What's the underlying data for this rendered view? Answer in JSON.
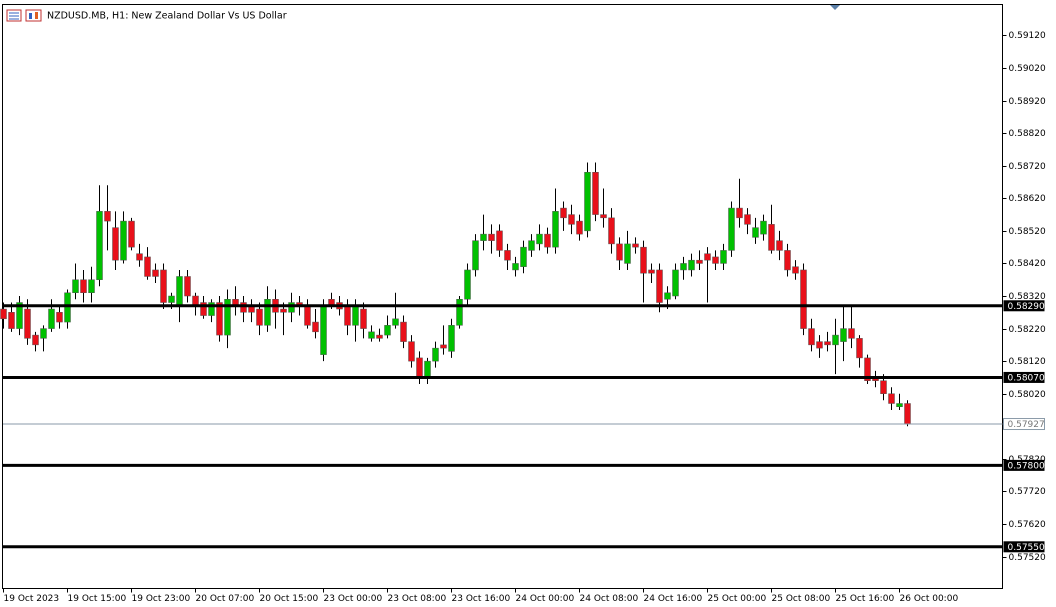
{
  "chart_data": {
    "type": "candlestick",
    "title": "NZDUSD.MB, H1:  New Zealand Dollar Vs US Dollar",
    "categories": [
      "19 Oct 2023",
      null,
      null,
      null,
      null,
      null,
      null,
      null,
      "19 Oct 15:00",
      null,
      null,
      null,
      null,
      null,
      null,
      null,
      "19 Oct 23:00",
      null,
      null,
      null,
      null,
      null,
      null,
      null,
      "20 Oct 07:00",
      null,
      null,
      null,
      null,
      null,
      null,
      null,
      "20 Oct 15:00",
      null,
      null,
      null,
      null,
      null,
      null,
      null,
      "23 Oct 00:00",
      null,
      null,
      null,
      null,
      null,
      null,
      null,
      "23 Oct 08:00",
      null,
      null,
      null,
      null,
      null,
      null,
      null,
      "23 Oct 16:00",
      null,
      null,
      null,
      null,
      null,
      null,
      null,
      "24 Oct 00:00",
      null,
      null,
      null,
      null,
      null,
      null,
      null,
      "24 Oct 08:00",
      null,
      null,
      null,
      null,
      null,
      null,
      null,
      "24 Oct 16:00",
      null,
      null,
      null,
      null,
      null,
      null,
      null,
      "25 Oct 00:00",
      null,
      null,
      null,
      null,
      null,
      null,
      null,
      "25 Oct 08:00",
      null,
      null,
      null,
      null,
      null,
      null,
      null,
      "25 Oct 16:00",
      null,
      null,
      null,
      null,
      null,
      null,
      null,
      "26 Oct 00:00",
      null
    ],
    "open": [
      0.5828,
      0.5827,
      0.5822,
      0.5828,
      0.582,
      0.5819,
      0.5822,
      0.5827,
      0.5824,
      0.5833,
      0.5837,
      0.5833,
      0.5837,
      0.5858,
      0.5853,
      0.5843,
      0.5855,
      0.5845,
      0.5844,
      0.584,
      0.584,
      0.583,
      0.5829,
      0.5838,
      0.5832,
      0.583,
      0.5826,
      0.583,
      0.582,
      0.5831,
      0.583,
      0.5829,
      0.5828,
      0.5823,
      0.5831,
      0.5828,
      0.5827,
      0.583,
      0.5829,
      0.5824,
      0.5814,
      0.5831,
      0.583,
      0.5829,
      0.5823,
      0.5828,
      0.5819,
      0.582,
      0.582,
      0.5823,
      0.5824,
      0.5818,
      0.5813,
      0.5807,
      0.5812,
      0.5817,
      0.5815,
      0.5823,
      0.5831,
      0.584,
      0.5849,
      0.5851,
      0.5852,
      0.5846,
      0.584,
      0.5841,
      0.5846,
      0.5848,
      0.5851,
      0.5847,
      0.5859,
      0.5857,
      0.5855,
      0.5852,
      0.587,
      0.5857,
      0.5856,
      0.5848,
      0.5842,
      0.5848,
      0.5847,
      0.584,
      0.584,
      0.5831,
      0.5832,
      0.584,
      0.584,
      0.5843,
      0.5845,
      0.5844,
      0.5842,
      0.5846,
      0.5859,
      0.5857,
      0.585,
      0.5851,
      0.5854,
      0.5849,
      0.5846,
      0.5841,
      0.584,
      0.5822,
      0.5818,
      0.5818,
      0.5817,
      0.5818,
      0.5822,
      0.5819,
      0.5813,
      0.5807,
      0.5806,
      0.5802,
      0.5798,
      0.5799
    ],
    "high": [
      0.583,
      0.583,
      0.5832,
      0.5831,
      0.5821,
      0.5823,
      0.5831,
      0.5829,
      0.5834,
      0.5842,
      0.584,
      0.5841,
      0.5866,
      0.5866,
      0.5858,
      0.5858,
      0.5856,
      0.5848,
      0.5847,
      0.5842,
      0.5842,
      0.5833,
      0.584,
      0.584,
      0.5833,
      0.5832,
      0.5831,
      0.5832,
      0.5834,
      0.5835,
      0.5832,
      0.5831,
      0.583,
      0.5835,
      0.5834,
      0.583,
      0.5833,
      0.5832,
      0.5831,
      0.5828,
      0.5831,
      0.5833,
      0.5832,
      0.5831,
      0.5831,
      0.583,
      0.5823,
      0.5822,
      0.5826,
      0.5833,
      0.5826,
      0.582,
      0.5815,
      0.5813,
      0.5818,
      0.5823,
      0.5825,
      0.5832,
      0.5842,
      0.5851,
      0.5857,
      0.5854,
      0.5854,
      0.5848,
      0.5844,
      0.5849,
      0.5851,
      0.5854,
      0.5853,
      0.5865,
      0.5861,
      0.586,
      0.5857,
      0.5873,
      0.5873,
      0.5865,
      0.5859,
      0.585,
      0.5852,
      0.585,
      0.5849,
      0.5842,
      0.5842,
      0.5835,
      0.5842,
      0.5844,
      0.5845,
      0.5846,
      0.5847,
      0.5846,
      0.5848,
      0.5861,
      0.5868,
      0.5859,
      0.5856,
      0.5857,
      0.586,
      0.5852,
      0.5848,
      0.5843,
      0.5842,
      0.5825,
      0.582,
      0.5821,
      0.5825,
      0.5829,
      0.5829,
      0.582,
      0.5814,
      0.5809,
      0.5808,
      0.5804,
      0.5802,
      0.58
    ],
    "low": [
      0.5822,
      0.5821,
      0.582,
      0.5817,
      0.5815,
      0.5815,
      0.5821,
      0.5822,
      0.5822,
      0.5831,
      0.583,
      0.583,
      0.5835,
      0.5846,
      0.584,
      0.5842,
      0.5846,
      0.5841,
      0.5837,
      0.5836,
      0.5828,
      0.5828,
      0.5824,
      0.583,
      0.5826,
      0.5825,
      0.5824,
      0.5818,
      0.5816,
      0.5826,
      0.5824,
      0.5824,
      0.582,
      0.5821,
      0.5822,
      0.582,
      0.5824,
      0.5826,
      0.5822,
      0.5819,
      0.5812,
      0.5828,
      0.5826,
      0.582,
      0.5818,
      0.5819,
      0.5818,
      0.5818,
      0.5819,
      0.5822,
      0.5816,
      0.581,
      0.5805,
      0.5805,
      0.581,
      0.5814,
      0.5813,
      0.5822,
      0.5829,
      0.5838,
      0.5846,
      0.5845,
      0.5844,
      0.584,
      0.5838,
      0.5839,
      0.5844,
      0.5846,
      0.5845,
      0.5845,
      0.5852,
      0.5851,
      0.5849,
      0.585,
      0.5855,
      0.5853,
      0.5845,
      0.584,
      0.584,
      0.5845,
      0.583,
      0.5836,
      0.5827,
      0.5828,
      0.5831,
      0.5837,
      0.5838,
      0.584,
      0.583,
      0.584,
      0.584,
      0.5844,
      0.5853,
      0.5851,
      0.5848,
      0.5849,
      0.5845,
      0.5843,
      0.5838,
      0.5837,
      0.582,
      0.5815,
      0.5813,
      0.5815,
      0.5808,
      0.5812,
      0.5816,
      0.581,
      0.5805,
      0.5804,
      0.58,
      0.5797,
      0.5797,
      0.5792
    ],
    "close": [
      0.5825,
      0.5822,
      0.583,
      0.5819,
      0.5817,
      0.5822,
      0.5828,
      0.5824,
      0.5833,
      0.5837,
      0.5833,
      0.5837,
      0.5858,
      0.5855,
      0.5843,
      0.5855,
      0.5847,
      0.5843,
      0.5838,
      0.5838,
      0.583,
      0.5832,
      0.5838,
      0.5832,
      0.5829,
      0.5826,
      0.583,
      0.582,
      0.5831,
      0.5829,
      0.5827,
      0.5827,
      0.5823,
      0.5831,
      0.5827,
      0.5827,
      0.583,
      0.5829,
      0.5823,
      0.5821,
      0.5829,
      0.5829,
      0.5828,
      0.5823,
      0.5829,
      0.5822,
      0.5821,
      0.5819,
      0.5823,
      0.5825,
      0.5818,
      0.5812,
      0.5807,
      0.5812,
      0.5816,
      0.5816,
      0.5823,
      0.5831,
      0.584,
      0.5849,
      0.5851,
      0.5849,
      0.5846,
      0.5843,
      0.5842,
      0.5847,
      0.5849,
      0.5851,
      0.5847,
      0.5858,
      0.5856,
      0.5854,
      0.5851,
      0.587,
      0.5857,
      0.5856,
      0.5848,
      0.5843,
      0.5848,
      0.5847,
      0.5839,
      0.5839,
      0.583,
      0.5833,
      0.584,
      0.5842,
      0.5843,
      0.5842,
      0.5843,
      0.5842,
      0.5846,
      0.5859,
      0.5856,
      0.5854,
      0.5853,
      0.5855,
      0.5846,
      0.5846,
      0.584,
      0.5839,
      0.5822,
      0.5817,
      0.5816,
      0.5817,
      0.582,
      0.5822,
      0.5819,
      0.5813,
      0.5806,
      0.5806,
      0.5802,
      0.5799,
      0.5799,
      0.57927
    ],
    "up_color": "#00c000",
    "down_color": "#e8101a",
    "ylim": [
      0.57422,
      0.59215
    ],
    "yticks": [
      {
        "value": 0.5912,
        "label": "0.59120"
      },
      {
        "value": 0.5902,
        "label": "0.59020"
      },
      {
        "value": 0.5892,
        "label": "0.58920"
      },
      {
        "value": 0.5882,
        "label": "0.58820"
      },
      {
        "value": 0.5872,
        "label": "0.58720"
      },
      {
        "value": 0.5862,
        "label": "0.58620"
      },
      {
        "value": 0.5852,
        "label": "0.58520"
      },
      {
        "value": 0.5842,
        "label": "0.58420"
      },
      {
        "value": 0.5832,
        "label": "0.58320"
      },
      {
        "value": 0.5822,
        "label": "0.58220"
      },
      {
        "value": 0.5812,
        "label": "0.58120"
      },
      {
        "value": 0.5802,
        "label": "0.58020"
      },
      {
        "value": 0.5782,
        "label": "0.57820"
      },
      {
        "value": 0.5772,
        "label": "0.57720"
      },
      {
        "value": 0.5762,
        "label": "0.57620"
      },
      {
        "value": 0.5752,
        "label": "0.57520"
      }
    ],
    "levels": [
      {
        "value": 0.5829,
        "label": "0.58290"
      },
      {
        "value": 0.5807,
        "label": "0.58070"
      },
      {
        "value": 0.578,
        "label": "0.57800"
      },
      {
        "value": 0.5755,
        "label": "0.57550"
      }
    ],
    "current_price": 0.57927,
    "grid": false
  }
}
